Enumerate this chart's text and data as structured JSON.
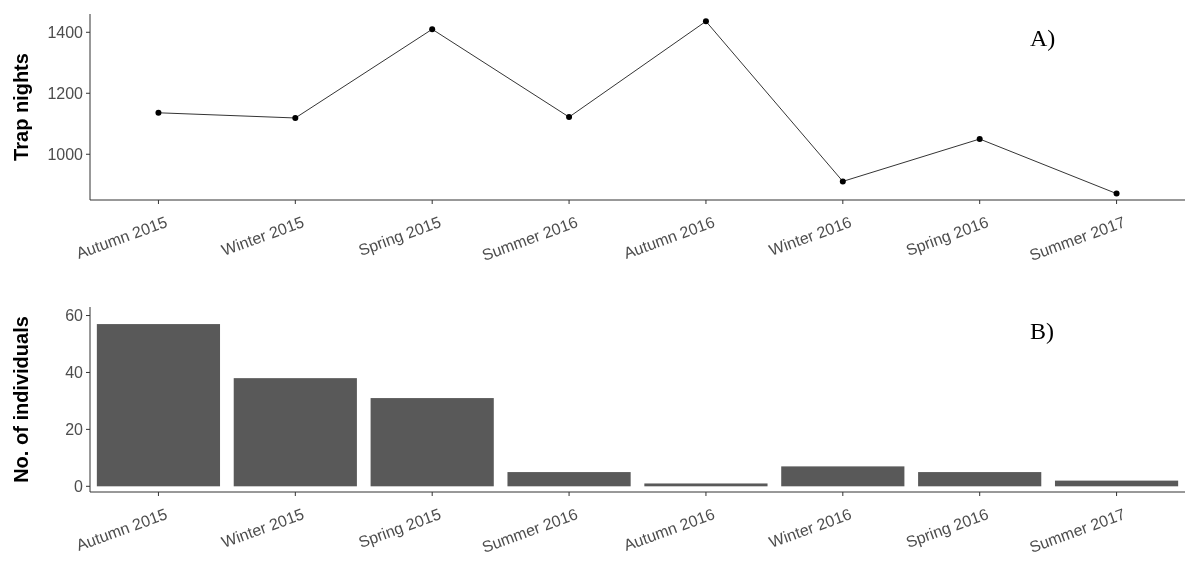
{
  "chart_data": [
    {
      "type": "line",
      "ylabel": "Trap nights",
      "categories": [
        "Autumn 2015",
        "Winter 2015",
        "Spring 2015",
        "Summer 2016",
        "Autumn 2016",
        "Winter 2016",
        "Spring 2016",
        "Summer 2017"
      ],
      "values": [
        1136,
        1119,
        1410,
        1122,
        1436,
        911,
        1050,
        871
      ],
      "color": "#000000",
      "marker": "circle",
      "ylim": [
        850,
        1460
      ],
      "yticks": [
        1000,
        1200,
        1400
      ],
      "grid": false,
      "annotations": [
        "A)"
      ]
    },
    {
      "type": "bar",
      "ylabel": "No. of individuals",
      "categories": [
        "Autumn 2015",
        "Winter 2015",
        "Spring 2015",
        "Summer 2016",
        "Autumn 2016",
        "Winter 2016",
        "Spring 2016",
        "Summer 2017"
      ],
      "values": [
        57,
        38,
        31,
        5,
        1,
        7,
        5,
        2
      ],
      "color": "#595959",
      "ylim": [
        -2,
        63
      ],
      "yticks": [
        0,
        20,
        40,
        60
      ],
      "grid": false,
      "annotations": [
        "B)"
      ]
    }
  ]
}
